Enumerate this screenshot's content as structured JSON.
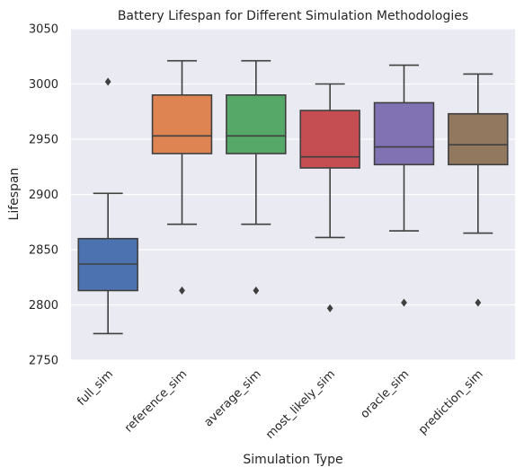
{
  "chart_data": {
    "type": "box",
    "title": "Battery Lifespan for Different Simulation Methodologies",
    "xlabel": "Simulation Type",
    "ylabel": "Lifespan",
    "ylim": [
      2750,
      3050
    ],
    "yticks": [
      2750,
      2800,
      2850,
      2900,
      2950,
      3000,
      3050
    ],
    "grid": true,
    "categories": [
      "full_sim",
      "reference_sim",
      "average_sim",
      "most_likely_sim",
      "oracle_sim",
      "prediction_sim"
    ],
    "colors": [
      "#4c72b0",
      "#dd8452",
      "#55a868",
      "#c44e52",
      "#8172b3",
      "#937860"
    ],
    "boxes": [
      {
        "name": "full_sim",
        "whisker_low": 2774,
        "q1": 2813,
        "median": 2837,
        "q3": 2860,
        "whisker_high": 2901,
        "outliers": [
          3002
        ]
      },
      {
        "name": "reference_sim",
        "whisker_low": 2873,
        "q1": 2937,
        "median": 2953,
        "q3": 2990,
        "whisker_high": 3021,
        "outliers": [
          2813
        ]
      },
      {
        "name": "average_sim",
        "whisker_low": 2873,
        "q1": 2937,
        "median": 2953,
        "q3": 2990,
        "whisker_high": 3021,
        "outliers": [
          2813
        ]
      },
      {
        "name": "most_likely_sim",
        "whisker_low": 2861,
        "q1": 2924,
        "median": 2934,
        "q3": 2976,
        "whisker_high": 3000,
        "outliers": [
          2797
        ]
      },
      {
        "name": "oracle_sim",
        "whisker_low": 2867,
        "q1": 2927,
        "median": 2943,
        "q3": 2983,
        "whisker_high": 3017,
        "outliers": [
          2802
        ]
      },
      {
        "name": "prediction_sim",
        "whisker_low": 2865,
        "q1": 2927,
        "median": 2945,
        "q3": 2973,
        "whisker_high": 3009,
        "outliers": [
          2802
        ]
      }
    ]
  }
}
